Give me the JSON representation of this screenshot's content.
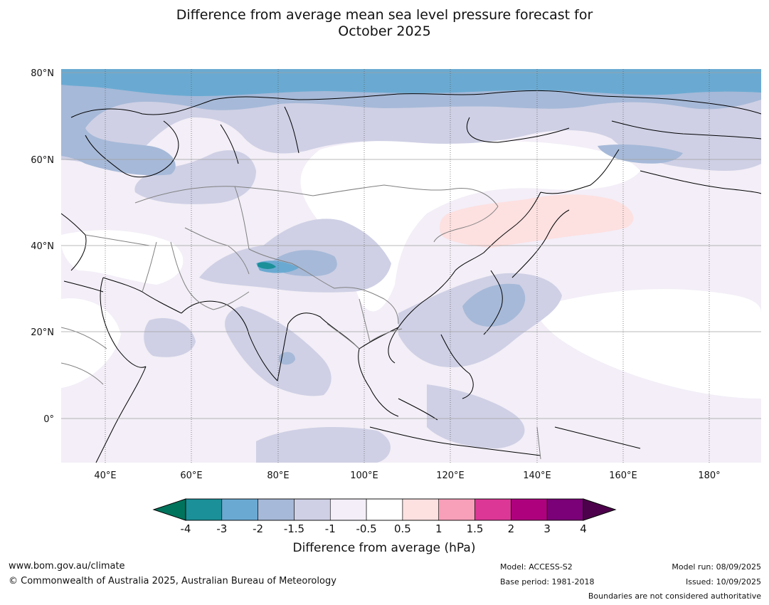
{
  "title": {
    "line1": "Difference from average mean sea level pressure forecast for",
    "line2": "October 2025"
  },
  "map": {
    "lat_ticks": [
      "80°N",
      "60°N",
      "40°N",
      "20°N",
      "0°"
    ],
    "lon_ticks": [
      "40°E",
      "60°E",
      "80°E",
      "100°E",
      "120°E",
      "140°E",
      "160°E",
      "180°"
    ],
    "colors": {
      "ocean_default": "#f3eef7",
      "land": "#ffffff",
      "arctic_band": "#6aaad2",
      "minus_1_5_to_2": "#a6b9d8",
      "minus_1_to_1_5": "#cfd0e5",
      "plus_0_5_to_1": "#fde0e0",
      "minus_3_to_4": "#1b9098",
      "coastline": "#000000",
      "border": "#808080"
    }
  },
  "colorbar": {
    "ticks": [
      "-4",
      "-3",
      "-2",
      "-1.5",
      "-1",
      "-0.5",
      "0.5",
      "1",
      "1.5",
      "2",
      "3",
      "4"
    ],
    "colors": [
      "#1b9098",
      "#6aaad2",
      "#a6b9d8",
      "#cfd0e5",
      "#f3eef7",
      "#ffffff",
      "#fde0e0",
      "#f89fba",
      "#dc3796",
      "#ae017e",
      "#7a0177"
    ],
    "under_color": "#00735c",
    "over_color": "#4d004b",
    "label": "Difference from average (hPa)"
  },
  "footer": {
    "website": "www.bom.gov.au/climate",
    "copyright": "© Commonwealth of Australia 2025, Australian Bureau of Meteorology",
    "model": "Model: ACCESS-S2",
    "base_period": "Base period: 1981-2018",
    "model_run": "Model run: 08/09/2025",
    "issued": "Issued: 10/09/2025",
    "boundaries_note": "Boundaries are not considered authoritative"
  }
}
